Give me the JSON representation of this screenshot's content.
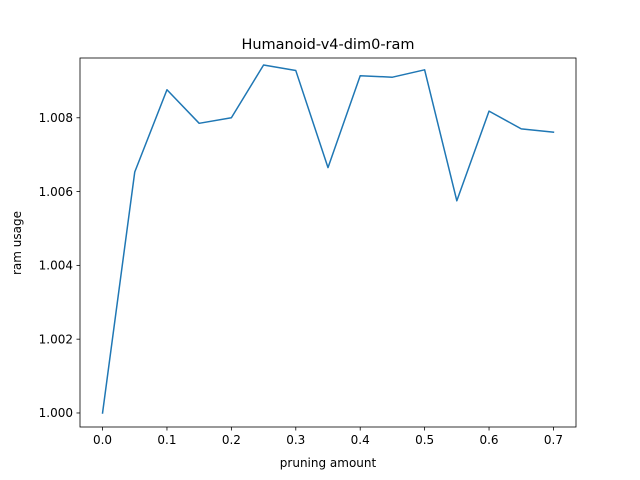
{
  "chart_data": {
    "type": "line",
    "title": "Humanoid-v4-dim0-ram",
    "xlabel": "pruning amount",
    "ylabel": "ram usage",
    "xlim": [
      -0.035,
      0.735
    ],
    "ylim": [
      0.99962,
      1.00962
    ],
    "grid": false,
    "xticks": [
      0.0,
      0.1,
      0.2,
      0.3,
      0.4,
      0.5,
      0.6,
      0.7
    ],
    "xtick_labels": [
      "0.0",
      "0.1",
      "0.2",
      "0.3",
      "0.4",
      "0.5",
      "0.6",
      "0.7"
    ],
    "yticks": [
      1.0,
      1.002,
      1.004,
      1.006,
      1.008
    ],
    "ytick_labels": [
      "1.000",
      "1.002",
      "1.004",
      "1.006",
      "1.008"
    ],
    "series": [
      {
        "color": "#1f77b4",
        "x": [
          0.0,
          0.05,
          0.1,
          0.15,
          0.2,
          0.25,
          0.3,
          0.35,
          0.4,
          0.45,
          0.5,
          0.55,
          0.6,
          0.65,
          0.7
        ],
        "y": [
          1.0,
          1.00653,
          1.00876,
          1.00785,
          1.008,
          1.00943,
          1.00928,
          1.00665,
          1.00914,
          1.0091,
          1.0093,
          1.00575,
          1.00818,
          1.0077,
          1.00761
        ]
      }
    ]
  }
}
